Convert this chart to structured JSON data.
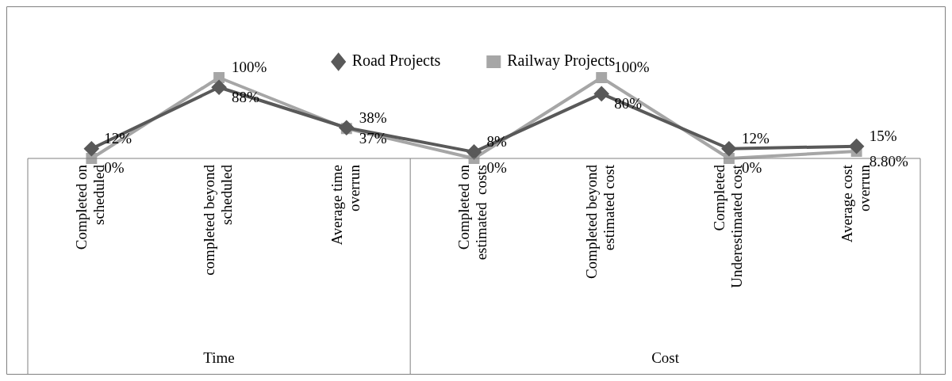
{
  "chart_data": {
    "type": "line",
    "categories": [
      "Completed on scheduled",
      "completed beyond scheduled",
      "Average time overrun",
      "Completed on estimated  costs",
      "Completed beyond estimated cost",
      "Completed Underestimated cost",
      "Average cost overrun"
    ],
    "series": [
      {
        "name": "Road Projects",
        "color": "#595959",
        "marker": "diamond",
        "values": [
          12,
          88,
          38,
          8,
          80,
          12,
          15
        ],
        "value_labels": [
          "12%",
          "88%",
          "38%",
          "8%",
          "80%",
          "12%",
          "15%"
        ]
      },
      {
        "name": "Railway Projects",
        "color": "#a6a6a6",
        "marker": "square",
        "values": [
          0,
          100,
          37,
          0,
          100,
          0,
          8.8
        ],
        "value_labels": [
          "0%",
          "100%",
          "37%",
          "0%",
          "100%",
          "0%",
          "8.80%"
        ]
      }
    ],
    "tick_labels": "x",
    "legend": "top",
    "annotations": [
      "Time",
      "Cost"
    ]
  }
}
